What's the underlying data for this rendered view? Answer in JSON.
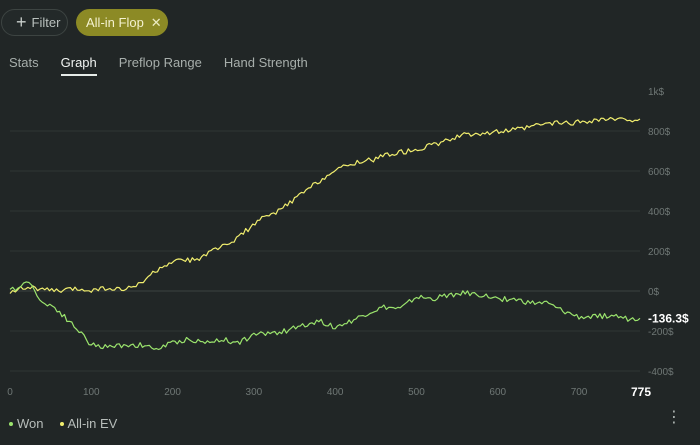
{
  "toolbar": {
    "filter_label": "Filter",
    "active_filter_label": "All-in Flop"
  },
  "tabs": [
    {
      "label": "Stats",
      "active": false
    },
    {
      "label": "Graph",
      "active": true
    },
    {
      "label": "Preflop Range",
      "active": false
    },
    {
      "label": "Hand Strength",
      "active": false
    }
  ],
  "legend": {
    "won_label": "Won",
    "ev_label": "All-in EV"
  },
  "colors": {
    "won": "#9be46d",
    "ev": "#f1ee6e",
    "chip": "#8c8a25"
  },
  "icons": {
    "plus": "plus-icon",
    "close": "close-icon",
    "more": "more-vertical-icon"
  },
  "chart_data": {
    "type": "line",
    "x_ticks": [
      "0",
      "100",
      "200",
      "300",
      "400",
      "500",
      "600",
      "700"
    ],
    "x_end_label": "775",
    "y_ticks": [
      "1k$",
      "800$",
      "600$",
      "400$",
      "200$",
      "0$",
      "-200$",
      "-400$"
    ],
    "ylim": [
      -400,
      1000
    ],
    "xlim": [
      0,
      775
    ],
    "grid": true,
    "legend_position": "bottom-left",
    "final_value_label": "-136.3$",
    "series": [
      {
        "name": "All-in EV",
        "x": [
          0,
          10,
          25,
          40,
          60,
          80,
          100,
          120,
          140,
          155,
          170,
          190,
          210,
          230,
          250,
          270,
          290,
          310,
          330,
          350,
          370,
          390,
          410,
          430,
          450,
          470,
          490,
          510,
          530,
          550,
          570,
          590,
          610,
          630,
          650,
          670,
          690,
          710,
          730,
          750,
          775
        ],
        "y": [
          0,
          10,
          20,
          5,
          0,
          10,
          5,
          15,
          5,
          25,
          70,
          130,
          150,
          160,
          200,
          240,
          300,
          360,
          400,
          460,
          520,
          580,
          620,
          650,
          660,
          690,
          700,
          720,
          740,
          770,
          790,
          790,
          800,
          810,
          830,
          840,
          840,
          850,
          860,
          855,
          860
        ]
      },
      {
        "name": "Won",
        "x": [
          0,
          10,
          20,
          30,
          40,
          55,
          70,
          85,
          100,
          120,
          140,
          160,
          180,
          200,
          220,
          240,
          260,
          280,
          300,
          320,
          340,
          360,
          380,
          400,
          420,
          440,
          460,
          480,
          500,
          520,
          540,
          560,
          580,
          600,
          620,
          640,
          660,
          680,
          700,
          720,
          740,
          760,
          775
        ],
        "y": [
          0,
          20,
          50,
          10,
          -60,
          -80,
          -140,
          -200,
          -270,
          -280,
          -270,
          -270,
          -290,
          -260,
          -240,
          -260,
          -240,
          -260,
          -220,
          -210,
          -200,
          -170,
          -150,
          -180,
          -150,
          -110,
          -80,
          -90,
          -30,
          -40,
          -20,
          -10,
          -20,
          -40,
          -40,
          -60,
          -60,
          -100,
          -130,
          -130,
          -120,
          -140,
          -136.3
        ]
      }
    ]
  }
}
